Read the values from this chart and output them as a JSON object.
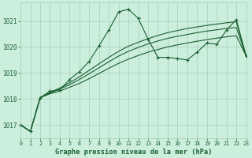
{
  "background_color": "#cceedd",
  "grid_color": "#aaccbb",
  "line_color": "#1a6030",
  "title": "Graphe pression niveau de la mer (hPa)",
  "xlim": [
    0,
    23
  ],
  "ylim": [
    1016.5,
    1021.7
  ],
  "yticks": [
    1017,
    1018,
    1019,
    1020,
    1021
  ],
  "xticks": [
    0,
    1,
    2,
    3,
    4,
    5,
    6,
    7,
    8,
    9,
    10,
    11,
    12,
    13,
    14,
    15,
    16,
    17,
    18,
    19,
    20,
    21,
    22,
    23
  ],
  "main_series": [
    1017.0,
    1016.75,
    1018.05,
    1018.3,
    1018.35,
    1018.75,
    1019.05,
    1019.45,
    1020.05,
    1020.65,
    1021.35,
    1021.45,
    1021.1,
    1020.3,
    1019.6,
    1019.6,
    1019.55,
    1019.5,
    1019.8,
    1020.15,
    1020.1,
    1020.65,
    1021.05,
    1019.65
  ],
  "trend_a": [
    1017.0,
    1016.75,
    1018.05,
    1018.2,
    1018.3,
    1018.45,
    1018.6,
    1018.78,
    1018.98,
    1019.18,
    1019.37,
    1019.53,
    1019.67,
    1019.8,
    1019.9,
    1020.0,
    1020.08,
    1020.15,
    1020.22,
    1020.28,
    1020.34,
    1020.39,
    1020.43,
    1019.65
  ],
  "trend_b": [
    1017.0,
    1016.75,
    1018.05,
    1018.22,
    1018.38,
    1018.55,
    1018.75,
    1018.97,
    1019.2,
    1019.43,
    1019.65,
    1019.83,
    1019.98,
    1020.12,
    1020.23,
    1020.33,
    1020.41,
    1020.48,
    1020.55,
    1020.61,
    1020.66,
    1020.71,
    1020.75,
    1019.65
  ],
  "trend_c": [
    1017.0,
    1016.75,
    1018.05,
    1018.25,
    1018.42,
    1018.62,
    1018.85,
    1019.1,
    1019.35,
    1019.6,
    1019.83,
    1020.03,
    1020.18,
    1020.32,
    1020.44,
    1020.55,
    1020.63,
    1020.71,
    1020.77,
    1020.83,
    1020.88,
    1020.93,
    1020.97,
    1019.65
  ]
}
